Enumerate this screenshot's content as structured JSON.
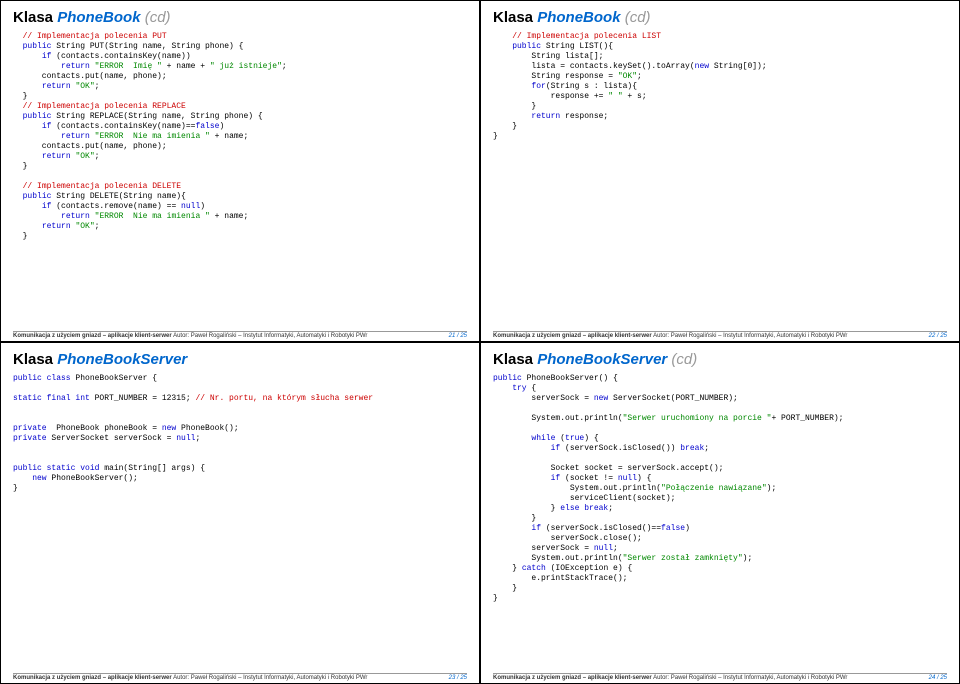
{
  "slides": {
    "s21": {
      "title_prefix": "Klasa",
      "title_class": "PhoneBook",
      "title_suffix": "(cd)",
      "footer_left": "Komunikacja z użyciem gniazd – aplikacje klient-serwer",
      "footer_right": "Autor: Paweł Rogaliński – Instytut Informatyki, Automatyki i Robotyki PWr",
      "page": "21 / 25",
      "code": {
        "c1": "// Implementacja polecenia PUT",
        "c2": "public String PUT(String name, String phone) {",
        "c3": "    if (contacts.containsKey(name))",
        "c4": "        return \"ERROR  Imię \" + name + \" już istnieje\";",
        "c5": "    contacts.put(name, phone);",
        "c6": "    return \"OK\";",
        "c7": "}",
        "c8": "// Implementacja polecenia REPLACE",
        "c9": "public String REPLACE(String name, String phone) {",
        "c10": "    if (contacts.containsKey(name)==false)",
        "c11": "        return \"ERROR  Nie ma imienia \" + name;",
        "c12": "    contacts.put(name, phone);",
        "c13": "    return \"OK\";",
        "c14": "}",
        "c15": "// Implementacja polecenia DELETE",
        "c16": "public String DELETE(String name){",
        "c17": "    if (contacts.remove(name) == null)",
        "c18": "        return \"ERROR  Nie ma imienia \" + name;",
        "c19": "    return \"OK\";",
        "c20": "}"
      }
    },
    "s22": {
      "title_prefix": "Klasa",
      "title_class": "PhoneBook",
      "title_suffix": "(cd)",
      "footer_left": "Komunikacja z użyciem gniazd – aplikacje klient-serwer",
      "footer_right": "Autor: Paweł Rogaliński – Instytut Informatyki, Automatyki i Robotyki PWr",
      "page": "22 / 25",
      "code": {
        "c1": "// Implementacja polecenia LIST",
        "c2": "public String LIST(){",
        "c3": "    String lista[];",
        "c4": "    lista = contacts.keySet().toArray(new String[0]);",
        "c5": "    String response = \"OK\";",
        "c6": "    for(String s : lista){",
        "c7": "        response += \" \" + s;",
        "c8": "    }",
        "c9": "    return response;",
        "c10": "}",
        "c11": "}"
      }
    },
    "s23": {
      "title_prefix": "Klasa",
      "title_class": "PhoneBookServer",
      "title_suffix": "",
      "footer_left": "Komunikacja z użyciem gniazd – aplikacje klient-serwer",
      "footer_right": "Autor: Paweł Rogaliński – Instytut Informatyki, Automatyki i Robotyki PWr",
      "page": "23 / 25",
      "code": {
        "c1": "public class PhoneBookServer {",
        "c2": "static final int PORT_NUMBER = 12315; ",
        "c2b": "// Nr. portu, na którym słucha serwer",
        "c3": "private  PhoneBook phoneBook = new PhoneBook();",
        "c4": "private ServerSocket serverSock = null;",
        "c5": "public static void main(String[] args) {",
        "c6": "    new PhoneBookServer();",
        "c7": "}"
      }
    },
    "s24": {
      "title_prefix": "Klasa",
      "title_class": "PhoneBookServer",
      "title_suffix": "(cd)",
      "footer_left": "Komunikacja z użyciem gniazd – aplikacje klient-serwer",
      "footer_right": "Autor: Paweł Rogaliński – Instytut Informatyki, Automatyki i Robotyki PWr",
      "page": "24 / 25",
      "code": {
        "c1": "public PhoneBookServer() {",
        "c2": "    try {",
        "c3": "        serverSock = new ServerSocket(PORT_NUMBER);",
        "c4": "        System.out.println(\"Serwer uruchomiony na porcie \"+ PORT_NUMBER);",
        "c5": "        while (true) {",
        "c6": "            if (serverSock.isClosed()) break;",
        "c7": "            Socket socket = serverSock.accept();",
        "c8": "            if (socket != null) {",
        "c9": "                System.out.println(\"Połączenie nawiązane\");",
        "c10": "                serviceClient(socket);",
        "c11": "            } else break;",
        "c12": "        }",
        "c13": "        if (serverSock.isClosed()==false)",
        "c14": "            serverSock.close();",
        "c15": "        serverSock = null;",
        "c16": "        System.out.println(\"Serwer został zamknięty\");",
        "c17": "    } catch (IOException e) {",
        "c18": "        e.printStackTrace();",
        "c19": "    }",
        "c20": "}"
      }
    }
  }
}
